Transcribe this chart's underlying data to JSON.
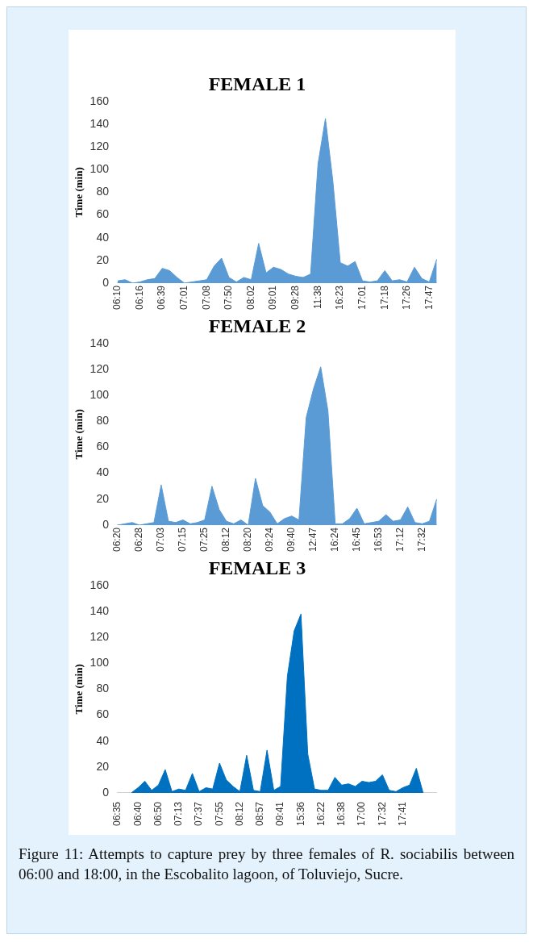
{
  "chart_data": [
    {
      "type": "area",
      "title": "FEMALE 1",
      "ylabel": "Time (min)",
      "color": "#5b9bd5",
      "ylim": [
        0,
        160
      ],
      "yticks": [
        0,
        20,
        40,
        60,
        80,
        100,
        120,
        140,
        160
      ],
      "categories": [
        "06:10",
        null,
        null,
        "06:16",
        null,
        null,
        "06:39",
        null,
        null,
        "07:01",
        null,
        null,
        "07:08",
        null,
        null,
        "07:50",
        null,
        null,
        "08:02",
        null,
        null,
        "09:01",
        null,
        null,
        "09:28",
        null,
        null,
        "11:38",
        null,
        null,
        "16:23",
        null,
        null,
        "17:01",
        null,
        null,
        "17:18",
        null,
        null,
        "17:26",
        null,
        null,
        "17:47",
        null
      ],
      "values": [
        2,
        3,
        0,
        1,
        3,
        4,
        13,
        11,
        5,
        0,
        1,
        2,
        3,
        15,
        22,
        5,
        1,
        5,
        3,
        35,
        9,
        14,
        12,
        8,
        6,
        5,
        8,
        105,
        145,
        90,
        18,
        15,
        19,
        2,
        1,
        2,
        11,
        2,
        3,
        1,
        14,
        4,
        1,
        21
      ]
    },
    {
      "type": "area",
      "title": "FEMALE 2",
      "ylabel": "Time (min)",
      "color": "#5b9bd5",
      "ylim": [
        0,
        140
      ],
      "yticks": [
        0,
        20,
        40,
        60,
        80,
        100,
        120,
        140
      ],
      "categories": [
        "06:20",
        null,
        null,
        "06:28",
        null,
        null,
        "07:03",
        null,
        null,
        "07:15",
        null,
        null,
        "07:25",
        null,
        null,
        "08:12",
        null,
        null,
        "08:20",
        null,
        null,
        "09:24",
        null,
        null,
        "09:40",
        null,
        null,
        "12:47",
        null,
        null,
        "16:24",
        null,
        null,
        "16:45",
        null,
        null,
        "16:53",
        null,
        null,
        "17:12",
        null,
        null,
        "17:32",
        null,
        null
      ],
      "values": [
        0,
        1,
        2,
        0,
        1,
        2,
        31,
        3,
        2,
        4,
        1,
        2,
        4,
        30,
        12,
        3,
        1,
        4,
        0,
        36,
        15,
        10,
        1,
        5,
        7,
        4,
        83,
        105,
        122,
        88,
        1,
        1,
        5,
        13,
        1,
        2,
        3,
        8,
        3,
        4,
        14,
        2,
        1,
        3,
        20
      ]
    },
    {
      "type": "area",
      "title": "FEMALE 3",
      "ylabel": "Time (min)",
      "color": "#0070c0",
      "ylim": [
        0,
        160
      ],
      "yticks": [
        0,
        20,
        40,
        60,
        80,
        100,
        120,
        140,
        160
      ],
      "categories": [
        "06:35",
        null,
        null,
        "06:40",
        null,
        null,
        "06:50",
        null,
        null,
        "07:13",
        null,
        null,
        "07:37",
        null,
        null,
        "07:55",
        null,
        null,
        "08:12",
        null,
        null,
        "08:57",
        null,
        null,
        "09:41",
        null,
        null,
        "15:36",
        null,
        null,
        "16:22",
        null,
        null,
        "16:38",
        null,
        null,
        "17:00",
        null,
        null,
        "17:32",
        null,
        null,
        "17:41",
        null,
        null,
        null,
        null,
        null
      ],
      "values": [
        null,
        null,
        0,
        4,
        9,
        2,
        6,
        18,
        1,
        3,
        2,
        15,
        1,
        4,
        3,
        23,
        10,
        5,
        1,
        29,
        2,
        1,
        33,
        2,
        5,
        90,
        125,
        138,
        30,
        3,
        2,
        2,
        12,
        6,
        7,
        5,
        9,
        8,
        9,
        14,
        2,
        1,
        4,
        6,
        19,
        0,
        null,
        null
      ],
      "annotations": [
        "Figure 11: Attempts to capture prey by three females of R. sociabilis between 06:00 and 18:00, in the Escobalito lagoon, of Toluviejo, Sucre."
      ]
    }
  ]
}
